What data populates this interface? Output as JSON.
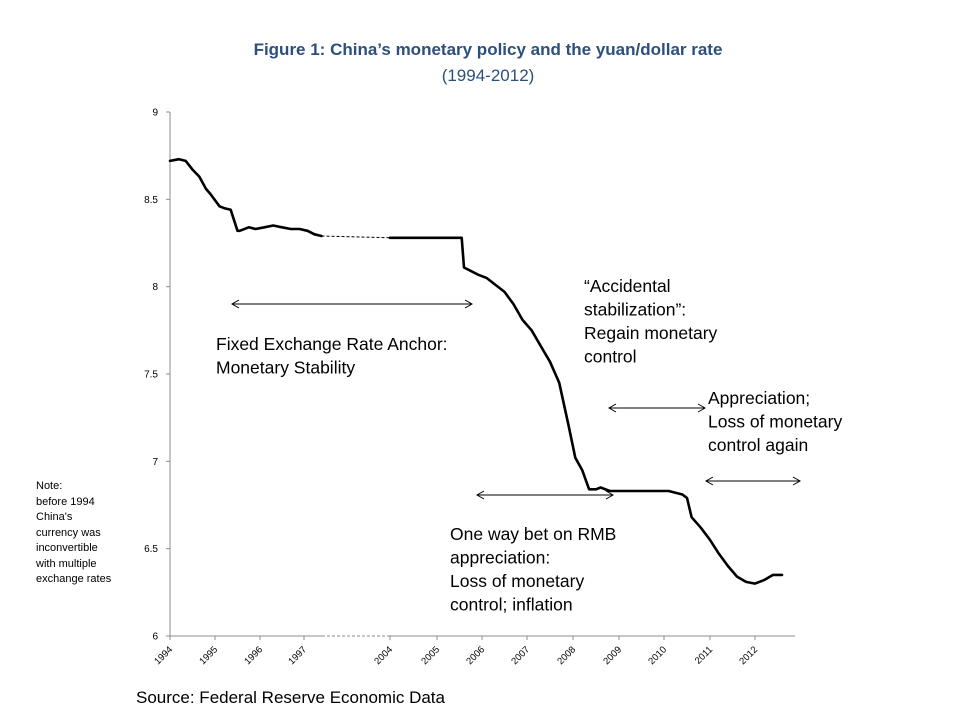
{
  "chart_data": {
    "type": "line",
    "title": "Figure 1: China’s monetary policy and the yuan/dollar rate",
    "subtitle": "(1994-2012)",
    "xlabel": "",
    "ylabel": "",
    "ylim": [
      6,
      9
    ],
    "y_ticks": [
      "9",
      "8.5",
      "8",
      "7.5",
      "7",
      "6.5",
      "6"
    ],
    "x_tick_labels": [
      "1994",
      "1995",
      "1996",
      "1997",
      "2004",
      "2005",
      "2006",
      "2007",
      "2008",
      "2009",
      "2010",
      "2011",
      "2012"
    ],
    "axis_break": "1998-2003 omitted",
    "grid": false,
    "legend": "none",
    "series": [
      {
        "color": "#000000",
        "x": [
          1994.0,
          1994.2,
          1994.35,
          1994.5,
          1994.65,
          1994.8,
          1994.9,
          1995.1,
          1995.2,
          1995.35,
          1995.5,
          1995.55,
          1995.75,
          1995.9,
          1996.1,
          1996.3,
          1996.5,
          1996.7,
          1996.9,
          1997.1,
          1997.3,
          1997.5
        ],
        "y": [
          8.72,
          8.73,
          8.72,
          8.67,
          8.63,
          8.56,
          8.53,
          8.46,
          8.45,
          8.44,
          8.32,
          8.32,
          8.34,
          8.33,
          8.34,
          8.35,
          8.34,
          8.33,
          8.33,
          8.32,
          8.3,
          8.29
        ]
      },
      {
        "color": "#000000",
        "x": [
          2004.0,
          2005.55,
          2005.6,
          2005.75,
          2005.9,
          2006.1,
          2006.3,
          2006.5,
          2006.7,
          2006.9,
          2007.1,
          2007.3,
          2007.5,
          2007.7,
          2007.9,
          2008.05,
          2008.2,
          2008.35,
          2008.5,
          2008.6,
          2008.8,
          2009.0,
          2009.2,
          2009.5,
          2009.8,
          2010.1,
          2010.4,
          2010.5,
          2010.6,
          2010.8,
          2011.0,
          2011.2,
          2011.4,
          2011.6,
          2011.8,
          2012.0,
          2012.2,
          2012.4,
          2012.6
        ],
        "y": [
          8.28,
          8.28,
          8.11,
          8.09,
          8.07,
          8.05,
          8.01,
          7.97,
          7.9,
          7.81,
          7.75,
          7.66,
          7.57,
          7.45,
          7.21,
          7.02,
          6.95,
          6.84,
          6.84,
          6.85,
          6.83,
          6.83,
          6.83,
          6.83,
          6.83,
          6.83,
          6.81,
          6.79,
          6.68,
          6.62,
          6.55,
          6.47,
          6.4,
          6.34,
          6.31,
          6.3,
          6.32,
          6.35,
          6.35
        ]
      }
    ],
    "annotations": [
      {
        "text": "Fixed Exchange Rate Anchor:\nMonetary Stability"
      },
      {
        "text": "One way bet on RMB\nappreciation:\nLoss of monetary\ncontrol; inflation"
      },
      {
        "text": "“Accidental\nstabilization”:\nRegain monetary\ncontrol"
      },
      {
        "text": "Appreciation;\nLoss of monetary\ncontrol again"
      }
    ]
  },
  "note": "Note:\nbefore 1994\nChina's\ncurrency was\ninconvertible\nwith multiple\nexchange rates",
  "source": "Source: Federal Reserve Economic Data"
}
